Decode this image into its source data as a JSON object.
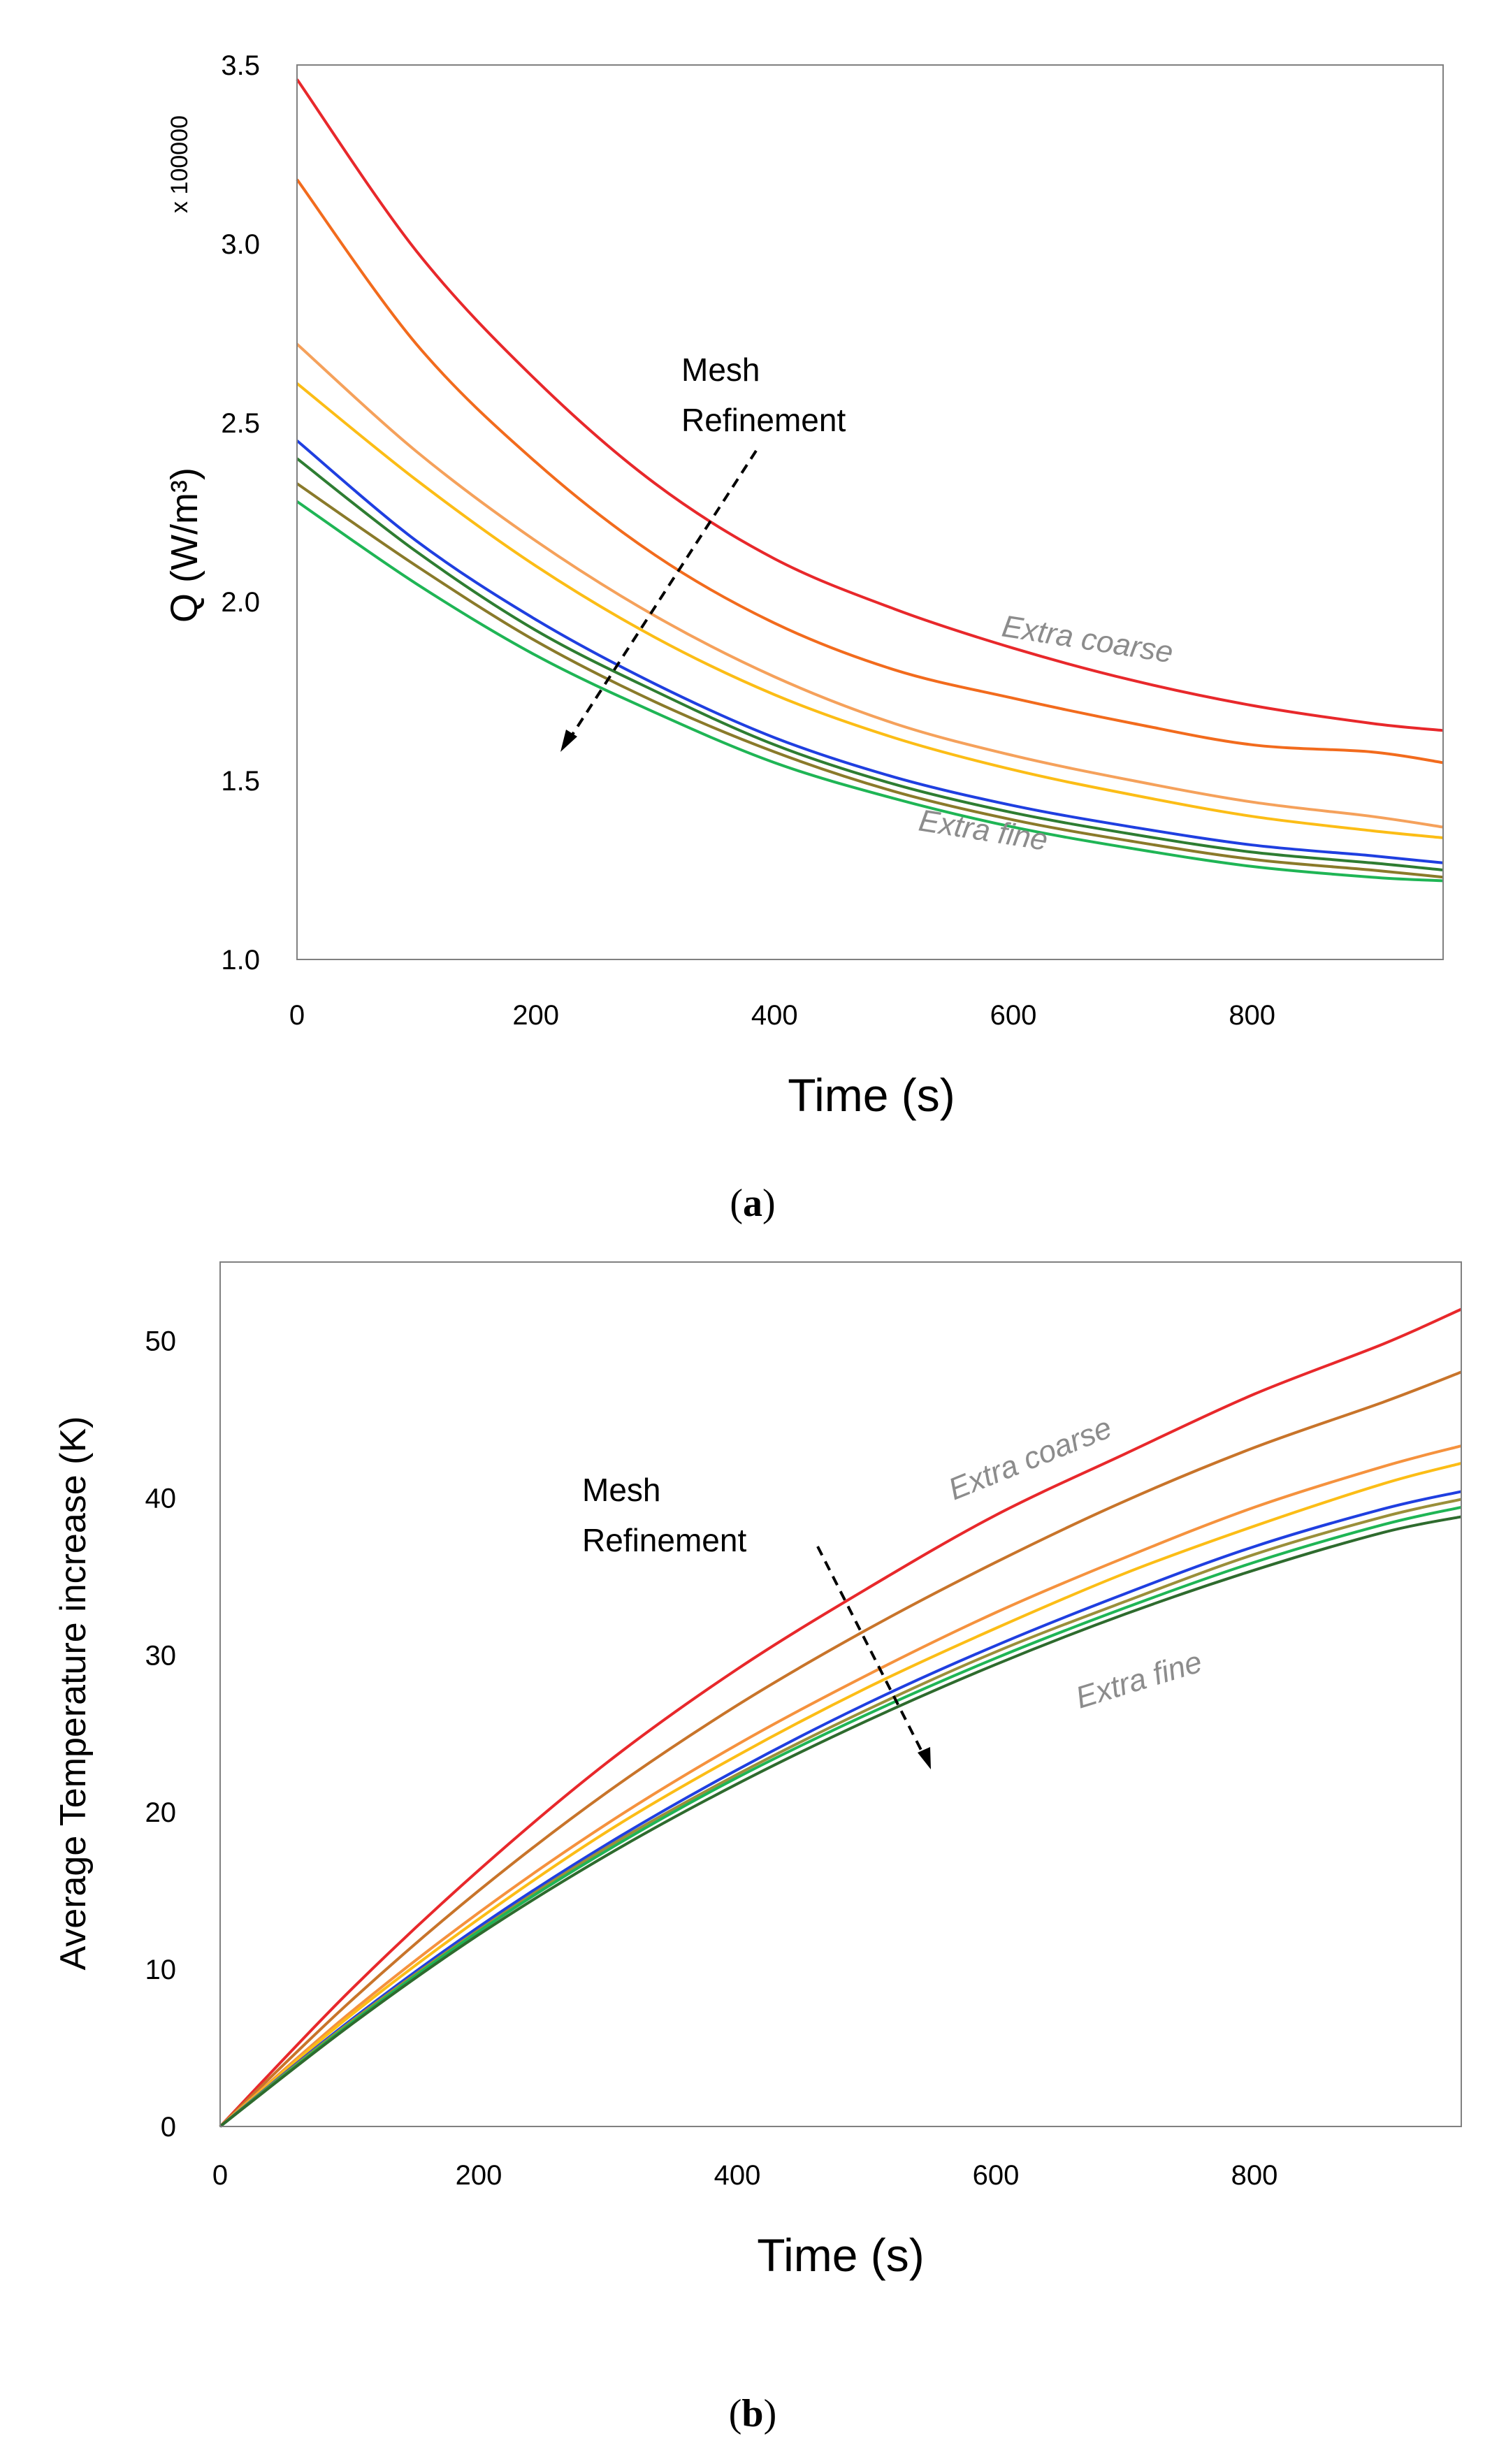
{
  "chart_data": [
    {
      "type": "line",
      "panel": "a",
      "caption_letter": "a",
      "ylabel": "Q (W/m³)",
      "ymultiplier": "x 100000",
      "xlabel": "Time (s)",
      "xlim": [
        0,
        960
      ],
      "ylim": [
        1.0,
        3.5
      ],
      "xticks": [
        "0",
        "200",
        "400",
        "600",
        "800"
      ],
      "yticks": [
        "1.0",
        "1.5",
        "2.0",
        "2.5",
        "3.0",
        "3.5"
      ],
      "grid": false,
      "annotation": [
        "Mesh",
        "Refinement"
      ],
      "curve_labels": [
        "Extra coarse",
        "Extra fine"
      ],
      "x": [
        0,
        100,
        200,
        300,
        400,
        500,
        600,
        700,
        800,
        900,
        960
      ],
      "series": [
        {
          "color": "#e8282b",
          "values": [
            3.46,
            2.98,
            2.62,
            2.33,
            2.12,
            1.98,
            1.87,
            1.78,
            1.71,
            1.66,
            1.64
          ]
        },
        {
          "color": "#f26b1d",
          "values": [
            3.18,
            2.72,
            2.39,
            2.13,
            1.94,
            1.81,
            1.73,
            1.66,
            1.6,
            1.58,
            1.55
          ]
        },
        {
          "color": "#f5a15b",
          "values": [
            2.72,
            2.42,
            2.17,
            1.96,
            1.79,
            1.66,
            1.57,
            1.5,
            1.44,
            1.4,
            1.37
          ]
        },
        {
          "color": "#fcbd16",
          "values": [
            2.61,
            2.34,
            2.1,
            1.9,
            1.74,
            1.62,
            1.53,
            1.46,
            1.4,
            1.36,
            1.34
          ]
        },
        {
          "color": "#1f3fe0",
          "values": [
            2.45,
            2.17,
            1.95,
            1.77,
            1.62,
            1.51,
            1.43,
            1.37,
            1.32,
            1.29,
            1.27
          ]
        },
        {
          "color": "#2e7d32",
          "values": [
            2.4,
            2.14,
            1.92,
            1.75,
            1.6,
            1.49,
            1.41,
            1.35,
            1.3,
            1.27,
            1.25
          ]
        },
        {
          "color": "#8a7a2a",
          "values": [
            2.33,
            2.1,
            1.89,
            1.72,
            1.58,
            1.47,
            1.39,
            1.33,
            1.28,
            1.25,
            1.23
          ]
        },
        {
          "color": "#1fb555",
          "values": [
            2.28,
            2.05,
            1.85,
            1.69,
            1.55,
            1.45,
            1.37,
            1.31,
            1.26,
            1.23,
            1.22
          ]
        }
      ]
    },
    {
      "type": "line",
      "panel": "b",
      "caption_letter": "b",
      "ylabel": "Average Temperature increase (K)",
      "xlabel": "Time (s)",
      "xlim": [
        0,
        960
      ],
      "ylim": [
        0,
        55
      ],
      "xticks": [
        "0",
        "200",
        "400",
        "600",
        "800"
      ],
      "yticks": [
        "0",
        "10",
        "20",
        "30",
        "40",
        "50"
      ],
      "grid": false,
      "annotation": [
        "Mesh",
        "Refinement"
      ],
      "curve_labels": [
        "Extra coarse",
        "Extra fine"
      ],
      "x": [
        0,
        100,
        200,
        300,
        400,
        500,
        600,
        700,
        800,
        900,
        960
      ],
      "series": [
        {
          "color": "#e8282b",
          "values": [
            0,
            8.6,
            16.3,
            23.2,
            29.1,
            34.2,
            38.9,
            42.8,
            46.6,
            49.8,
            52.0
          ]
        },
        {
          "color": "#c8742a",
          "values": [
            0,
            7.9,
            15.0,
            21.3,
            26.8,
            31.6,
            35.9,
            39.8,
            43.2,
            46.1,
            48.0
          ]
        },
        {
          "color": "#f5923e",
          "values": [
            0,
            7.2,
            13.6,
            19.3,
            24.3,
            28.7,
            32.7,
            36.2,
            39.4,
            42.0,
            43.3
          ]
        },
        {
          "color": "#fcbd16",
          "values": [
            0,
            7.0,
            13.2,
            18.8,
            23.6,
            27.9,
            31.7,
            35.2,
            38.2,
            40.9,
            42.2
          ]
        },
        {
          "color": "#1f3fe0",
          "values": [
            0,
            6.7,
            12.7,
            18.0,
            22.7,
            26.9,
            30.6,
            33.9,
            36.9,
            39.3,
            40.4
          ]
        },
        {
          "color": "#9a8f3a",
          "values": [
            0,
            6.6,
            12.5,
            17.8,
            22.4,
            26.5,
            30.2,
            33.4,
            36.4,
            38.8,
            39.9
          ]
        },
        {
          "color": "#1fb555",
          "values": [
            0,
            6.5,
            12.4,
            17.6,
            22.2,
            26.2,
            29.8,
            33.0,
            35.9,
            38.3,
            39.4
          ]
        },
        {
          "color": "#2e6b2e",
          "values": [
            0,
            6.4,
            12.2,
            17.3,
            21.8,
            25.8,
            29.4,
            32.6,
            35.4,
            37.8,
            38.8
          ]
        }
      ]
    }
  ]
}
